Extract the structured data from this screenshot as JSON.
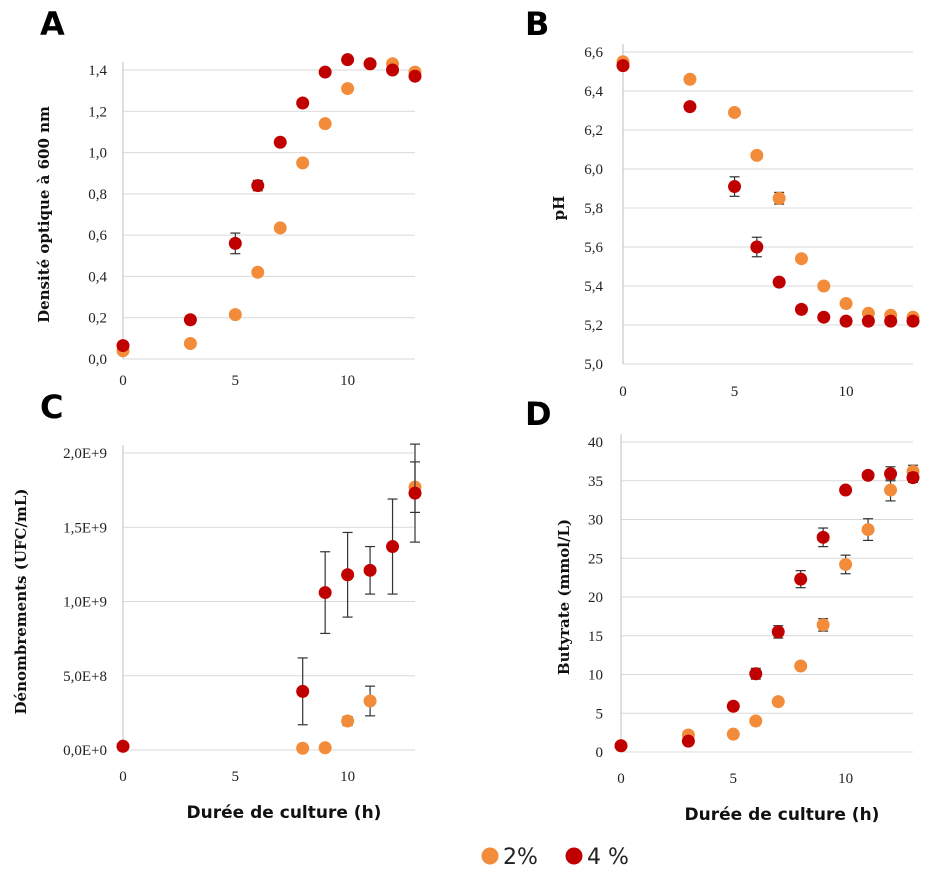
{
  "colors": {
    "s2": "#f28c3a",
    "s4": "#c00000"
  },
  "legend": {
    "labels": [
      "2%",
      "4 %"
    ]
  },
  "chart_data": [
    {
      "id": "A",
      "letter": "A",
      "type": "scatter",
      "ylabel": "Densité optique à 600 nm",
      "xlabel": "",
      "xlim": [
        0,
        13
      ],
      "ylim": [
        0,
        1.4
      ],
      "xticks": [
        0,
        5,
        10
      ],
      "yticks": [
        0,
        0.2,
        0.4,
        0.6,
        0.8,
        1.0,
        1.2,
        1.4
      ],
      "ytick_labels": [
        "0,0",
        "0,2",
        "0,4",
        "0,6",
        "0,8",
        "1,0",
        "1,2",
        "1,4"
      ],
      "series": [
        {
          "name": "2%",
          "x": [
            0,
            3,
            5,
            6,
            7,
            8,
            9,
            10,
            11,
            12,
            13
          ],
          "y": [
            0.04,
            0.075,
            0.215,
            0.42,
            0.635,
            0.95,
            1.14,
            1.31,
            1.43,
            1.43,
            1.39
          ],
          "err": [
            0,
            0,
            0,
            0,
            0,
            0,
            0,
            0,
            0,
            0,
            0
          ]
        },
        {
          "name": "4 %",
          "x": [
            0,
            3,
            5,
            6,
            7,
            8,
            9,
            10,
            11,
            12,
            13
          ],
          "y": [
            0.065,
            0.19,
            0.56,
            0.84,
            1.05,
            1.24,
            1.39,
            1.45,
            1.43,
            1.4,
            1.37
          ],
          "err": [
            0,
            0,
            0.05,
            0.025,
            0,
            0,
            0,
            0,
            0,
            0,
            0
          ]
        }
      ]
    },
    {
      "id": "B",
      "letter": "B",
      "type": "scatter",
      "ylabel": "pH",
      "xlabel": "",
      "xlim": [
        0,
        13
      ],
      "ylim": [
        5.0,
        6.6
      ],
      "xticks": [
        0,
        5,
        10
      ],
      "yticks": [
        5.0,
        5.2,
        5.4,
        5.6,
        5.8,
        6.0,
        6.2,
        6.4,
        6.6
      ],
      "ytick_labels": [
        "5,0",
        "5,2",
        "5,4",
        "5,6",
        "5,8",
        "6,0",
        "6,2",
        "6,4",
        "6,6"
      ],
      "series": [
        {
          "name": "2%",
          "x": [
            0,
            3,
            5,
            6,
            7,
            8,
            9,
            10,
            11,
            12,
            13
          ],
          "y": [
            6.55,
            6.46,
            6.29,
            6.07,
            5.85,
            5.54,
            5.4,
            5.31,
            5.26,
            5.25,
            5.24
          ],
          "err": [
            0,
            0,
            0,
            0,
            0.03,
            0,
            0,
            0,
            0,
            0,
            0
          ]
        },
        {
          "name": "4 %",
          "x": [
            0,
            3,
            5,
            6,
            7,
            8,
            9,
            10,
            11,
            12,
            13
          ],
          "y": [
            6.53,
            6.32,
            5.91,
            5.6,
            5.42,
            5.28,
            5.24,
            5.22,
            5.22,
            5.22,
            5.22
          ],
          "err": [
            0,
            0,
            0.05,
            0.05,
            0,
            0,
            0,
            0,
            0,
            0,
            0
          ]
        }
      ]
    },
    {
      "id": "C",
      "letter": "C",
      "type": "scatter",
      "ylabel": "Dénombrements (UFC/mL)",
      "xlabel": "Durée de culture (h)",
      "xlim": [
        0,
        13
      ],
      "ylim": [
        0,
        2000000000
      ],
      "xticks": [
        0,
        5,
        10
      ],
      "yticks": [
        0,
        500000000,
        1000000000,
        1500000000,
        2000000000
      ],
      "ytick_labels": [
        "0,0E+0",
        "5,0E+8",
        "1,0E+9",
        "1,5E+9",
        "2,0E+9"
      ],
      "series": [
        {
          "name": "2%",
          "x": [
            0,
            8,
            9,
            10,
            11,
            13
          ],
          "y": [
            25000000,
            12000000,
            15000000,
            195000000,
            330000000,
            1770000000
          ],
          "err": [
            0,
            0,
            0,
            30000000,
            100000000,
            170000000
          ]
        },
        {
          "name": "4 %",
          "x": [
            0,
            8,
            9,
            10,
            11,
            12,
            13
          ],
          "y": [
            25000000,
            395000000,
            1060000000,
            1180000000,
            1210000000,
            1370000000,
            1730000000
          ],
          "err": [
            0,
            225000000,
            275000000,
            285000000,
            160000000,
            320000000,
            330000000
          ]
        }
      ]
    },
    {
      "id": "D",
      "letter": "D",
      "type": "scatter",
      "ylabel": "Butyrate (mmol/L)",
      "xlabel": "Durée de culture (h)",
      "xlim": [
        0,
        13
      ],
      "ylim": [
        0,
        40
      ],
      "xticks": [
        0,
        5,
        10
      ],
      "yticks": [
        0,
        5,
        10,
        15,
        20,
        25,
        30,
        35,
        40
      ],
      "ytick_labels": [
        "0",
        "5",
        "10",
        "15",
        "20",
        "25",
        "30",
        "35",
        "40"
      ],
      "series": [
        {
          "name": "2%",
          "x": [
            0,
            3,
            5,
            6,
            7,
            8,
            9,
            10,
            11,
            12,
            13
          ],
          "y": [
            0.8,
            2.2,
            2.3,
            4.0,
            6.5,
            11.1,
            16.4,
            24.2,
            28.7,
            33.8,
            36.2
          ],
          "err": [
            0,
            0,
            0,
            0,
            0,
            0.4,
            0.8,
            1.2,
            1.4,
            1.4,
            0.8
          ]
        },
        {
          "name": "4 %",
          "x": [
            0,
            3,
            5,
            6,
            7,
            8,
            9,
            10,
            11,
            12,
            13
          ],
          "y": [
            0.8,
            1.4,
            5.9,
            10.1,
            15.5,
            22.3,
            27.7,
            33.8,
            35.7,
            35.9,
            35.4
          ],
          "err": [
            0,
            0,
            0,
            0.7,
            0.8,
            1.1,
            1.2,
            0,
            0,
            0.9,
            0.6
          ]
        }
      ]
    }
  ]
}
